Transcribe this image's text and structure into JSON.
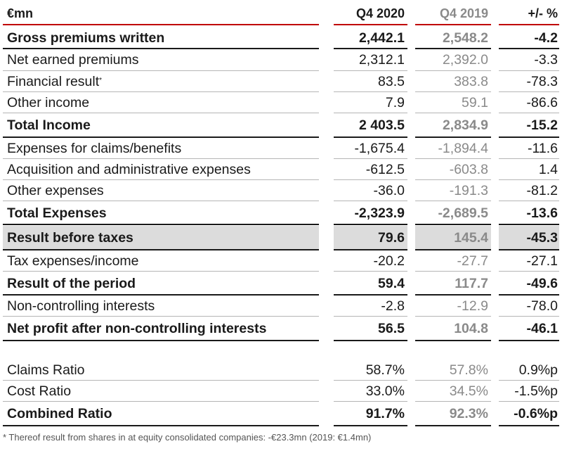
{
  "header": {
    "label": "€mn",
    "col1": "Q4 2020",
    "col2": "Q4 2019",
    "col3": "+/- %"
  },
  "rows": [
    {
      "label": "Gross premiums written",
      "v1": "2,442.1",
      "v2": "2,548.2",
      "v3": "-4.2",
      "bold": true
    },
    {
      "label": "Net earned premiums",
      "v1": "2,312.1",
      "v2": "2,392.0",
      "v3": "-3.3",
      "bold": false
    },
    {
      "label": "Financial result",
      "sup": "*",
      "v1": "83.5",
      "v2": "383.8",
      "v3": "-78.3",
      "bold": false
    },
    {
      "label": "Other income",
      "v1": "7.9",
      "v2": "59.1",
      "v3": "-86.6",
      "bold": false
    },
    {
      "label": "Total Income",
      "v1": "2 403.5",
      "v2": "2,834.9",
      "v3": "-15.2",
      "bold": true
    },
    {
      "label": "Expenses for claims/benefits",
      "v1": "-1,675.4",
      "v2": "-1,894.4",
      "v3": "-11.6",
      "bold": false
    },
    {
      "label": "Acquisition and administrative expenses",
      "v1": "-612.5",
      "v2": "-603.8",
      "v3": "1.4",
      "bold": false
    },
    {
      "label": "Other expenses",
      "v1": "-36.0",
      "v2": "-191.3",
      "v3": "-81.2",
      "bold": false
    },
    {
      "label": "Total Expenses",
      "v1": "-2,323.9",
      "v2": "-2,689.5",
      "v3": "-13.6",
      "bold": true
    },
    {
      "label": "Result before taxes",
      "v1": "79.6",
      "v2": "145.4",
      "v3": "-45.3",
      "bold": true,
      "shaded": true
    },
    {
      "label": "Tax expenses/income",
      "v1": "-20.2",
      "v2": "-27.7",
      "v3": "-27.1",
      "bold": false
    },
    {
      "label": "Result of the period",
      "v1": "59.4",
      "v2": "117.7",
      "v3": "-49.6",
      "bold": true
    },
    {
      "label": "Non-controlling interests",
      "v1": "-2.8",
      "v2": "-12.9",
      "v3": "-78.0",
      "bold": false
    },
    {
      "label": "Net profit after non-controlling interests",
      "v1": "56.5",
      "v2": "104.8",
      "v3": "-46.1",
      "bold": true
    },
    {
      "label": "Claims Ratio",
      "v1": "58.7%",
      "v2": "57.8%",
      "v3": "0.9%p",
      "bold": false
    },
    {
      "label": "Cost Ratio",
      "v1": "33.0%",
      "v2": "34.5%",
      "v3": "-1.5%p",
      "bold": false
    },
    {
      "label": "Combined Ratio",
      "v1": "91.7%",
      "v2": "92.3%",
      "v3": "-0.6%p",
      "bold": true
    }
  ],
  "footnote": "* Thereof result from shares in at equity consolidated companies: -€23.3mn (2019: €1.4mn)"
}
